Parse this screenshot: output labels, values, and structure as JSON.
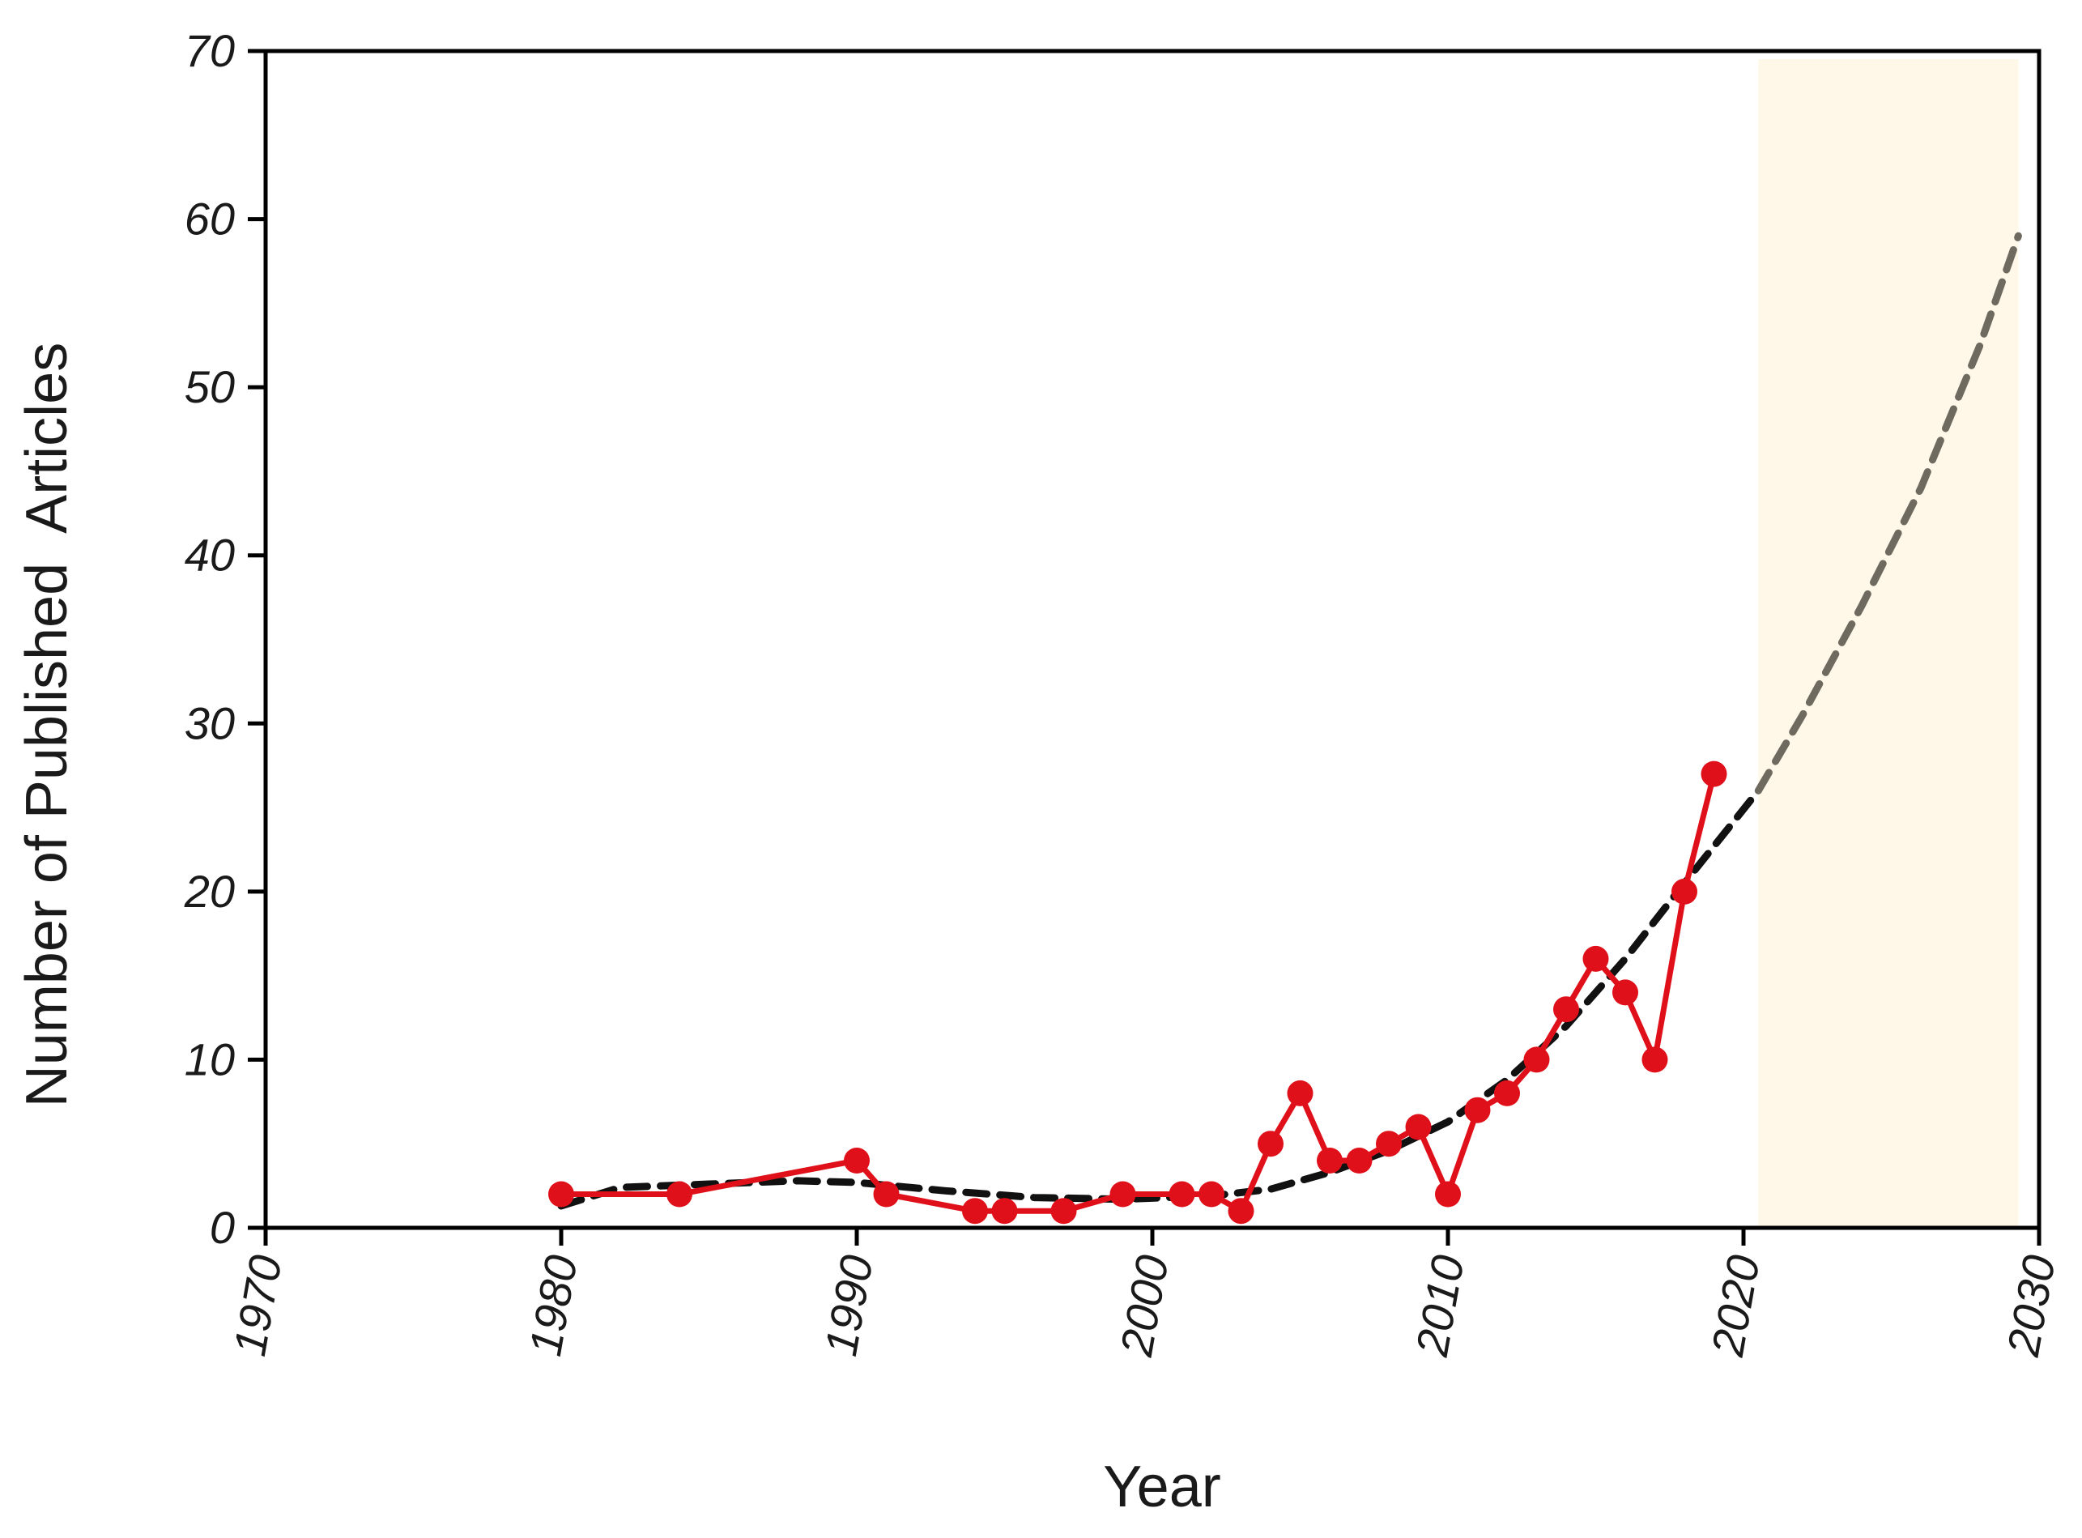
{
  "chart_data": {
    "type": "line",
    "title": "",
    "xlabel": "Year",
    "ylabel": "Number of Published  Articles",
    "xlim": [
      1970,
      2030
    ],
    "ylim": [
      0,
      70
    ],
    "x_ticks": [
      "1970",
      "1980",
      "1990",
      "2000",
      "2010",
      "2020",
      "2030"
    ],
    "y_ticks": [
      "0",
      "10",
      "20",
      "30",
      "40",
      "50",
      "60",
      "70"
    ],
    "grid": false,
    "legend": "none",
    "forecast_region": {
      "x": [
        2020.5,
        2029.3
      ],
      "color": "#fff8e8"
    },
    "series": [
      {
        "style": "line-markers",
        "color": "#e0101a",
        "x": [
          1980,
          1984,
          1990,
          1991,
          1994,
          1995,
          1997,
          1999,
          2001,
          2002,
          2003,
          2004,
          2005,
          2006,
          2007,
          2008,
          2009,
          2010,
          2011,
          2012,
          2013,
          2014,
          2015,
          2016,
          2017,
          2018,
          2019
        ],
        "y": [
          2,
          2,
          4,
          2,
          1,
          1,
          1,
          2,
          2,
          2,
          1,
          5,
          8,
          4,
          4,
          5,
          6,
          2,
          7,
          8,
          10,
          13,
          16,
          14,
          10,
          20,
          27
        ]
      },
      {
        "style": "dashed",
        "color": "#111111",
        "x": [
          1980,
          1982,
          1985,
          1988,
          1990,
          1993,
          1996,
          1999,
          2002,
          2004,
          2006,
          2008,
          2010,
          2012,
          2014,
          2016,
          2018,
          2020.5
        ],
        "y": [
          1.3,
          2.4,
          2.6,
          2.8,
          2.7,
          2.2,
          1.8,
          1.7,
          1.9,
          2.3,
          3.3,
          4.6,
          6.3,
          8.8,
          12.0,
          16.0,
          20.5,
          26.0
        ]
      },
      {
        "style": "dashed",
        "color": "#6e6a60",
        "x": [
          2020.5,
          2022,
          2024,
          2026,
          2028,
          2029.3
        ],
        "y": [
          26.0,
          30.5,
          37.0,
          44.0,
          52.5,
          59.0
        ]
      }
    ]
  }
}
